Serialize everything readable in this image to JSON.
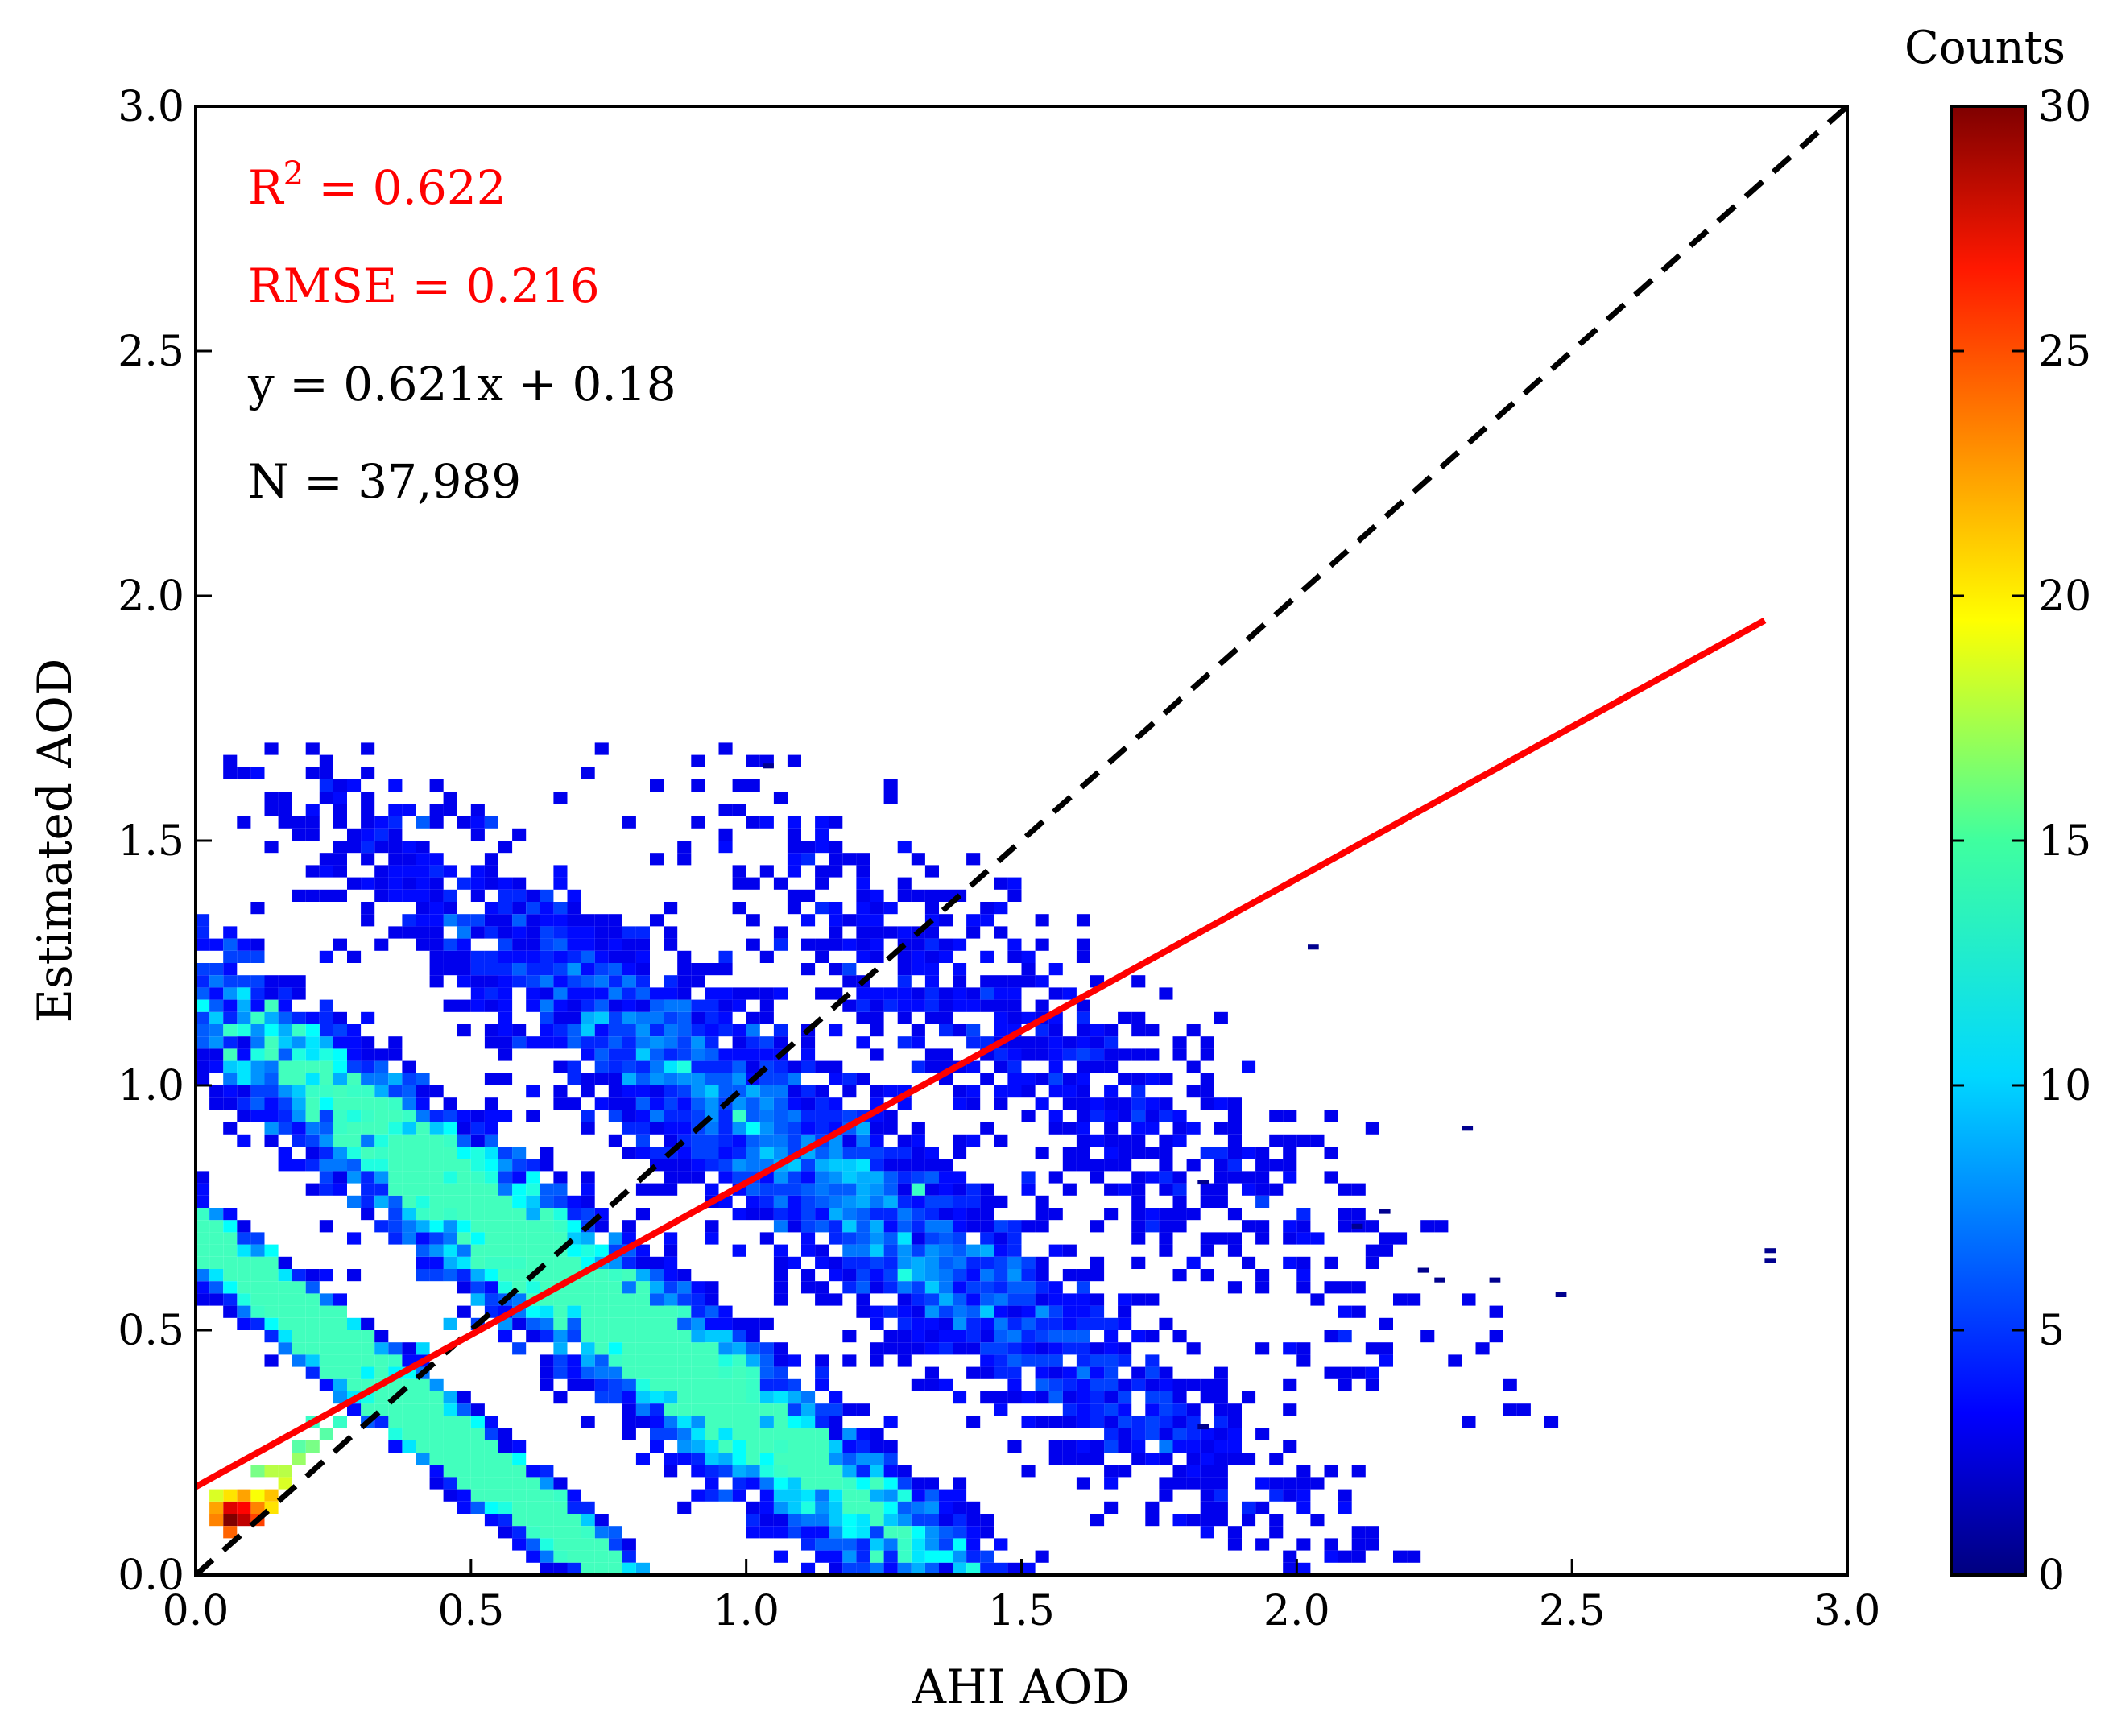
{
  "chart_data": {
    "type": "scatter",
    "subtype": "density-heatmap",
    "title": "",
    "xlabel": "AHI AOD",
    "ylabel": "Estimated AOD",
    "xlim": [
      0.0,
      3.0
    ],
    "ylim": [
      0.0,
      3.0
    ],
    "xticks": [
      "0.0",
      "0.5",
      "1.0",
      "1.5",
      "2.0",
      "2.5",
      "3.0"
    ],
    "yticks": [
      "0.0",
      "0.5",
      "1.0",
      "1.5",
      "2.0",
      "2.5",
      "3.0"
    ],
    "grid": false,
    "colorbar": {
      "title": "Counts",
      "range": [
        0,
        30
      ],
      "ticks": [
        "0",
        "5",
        "10",
        "15",
        "20",
        "25",
        "30"
      ],
      "colormap": "jet"
    },
    "stats": {
      "r2_prefix": "R",
      "r2_sup": "2",
      "r2_value": " = 0.622",
      "rmse": "RMSE = 0.216",
      "equation": "y = 0.621x + 0.18",
      "n": "N = 37,989"
    },
    "fit_line": {
      "slope": 0.621,
      "intercept": 0.18,
      "x_range": [
        0.0,
        2.85
      ],
      "color": "#ff0000"
    },
    "identity_line": {
      "x_range": [
        0.0,
        3.0
      ],
      "color": "#000000",
      "style": "dashed"
    },
    "stats_colors": {
      "r2": "#ff0000",
      "rmse": "#ff0000",
      "equation": "#000000",
      "n": "#000000"
    },
    "density_bins": {
      "bin_size": 0.025,
      "cells": [
        [
          0.05,
          0.1,
          30
        ],
        [
          0.075,
          0.1,
          28
        ],
        [
          0.05,
          0.125,
          27
        ],
        [
          0.075,
          0.125,
          26
        ],
        [
          0.1,
          0.1,
          24
        ],
        [
          0.025,
          0.1,
          22
        ],
        [
          0.05,
          0.075,
          23
        ],
        [
          0.1,
          0.125,
          22
        ],
        [
          0.125,
          0.15,
          20
        ],
        [
          0.025,
          0.125,
          21
        ],
        [
          0.075,
          0.15,
          21
        ],
        [
          0.05,
          0.15,
          19
        ],
        [
          0.1,
          0.15,
          18
        ],
        [
          0.125,
          0.125,
          19
        ],
        [
          0.15,
          0.175,
          17
        ],
        [
          0.025,
          0.15,
          17
        ],
        [
          0.125,
          0.2,
          16
        ],
        [
          0.15,
          0.2,
          16
        ],
        [
          0.175,
          0.225,
          15
        ],
        [
          0.2,
          0.25,
          14
        ],
        [
          0.225,
          0.275,
          13
        ],
        [
          0.25,
          0.3,
          12
        ],
        [
          0.175,
          0.25,
          13
        ],
        [
          0.1,
          0.2,
          14
        ],
        [
          0.2,
          0.3,
          12
        ],
        [
          0.3,
          0.35,
          11
        ],
        [
          0.35,
          0.4,
          10
        ],
        [
          0.4,
          0.45,
          9
        ],
        [
          0.3,
          0.4,
          10
        ],
        [
          0.45,
          0.5,
          8
        ],
        [
          0.5,
          0.55,
          8
        ],
        [
          0.55,
          0.5,
          7
        ]
      ]
    },
    "cloud_ellipses": [
      {
        "cx": 0.7,
        "cy": 0.58,
        "sx": 0.5,
        "sy": 0.28,
        "angle": -38,
        "n": 9000
      },
      {
        "cx": 0.35,
        "cy": 0.38,
        "sx": 0.3,
        "sy": 0.18,
        "angle": -40,
        "n": 7000
      },
      {
        "cx": 1.1,
        "cy": 0.85,
        "sx": 0.45,
        "sy": 0.28,
        "angle": -35,
        "n": 3000
      },
      {
        "cx": 1.55,
        "cy": 1.05,
        "sx": 0.35,
        "sy": 0.25,
        "angle": -30,
        "n": 700
      }
    ],
    "outliers": [
      [
        2.3,
        0.91
      ],
      [
        2.1,
        0.71
      ],
      [
        2.15,
        0.74
      ],
      [
        2.22,
        0.62
      ],
      [
        2.25,
        0.6
      ],
      [
        2.35,
        0.6
      ],
      [
        2.47,
        0.57
      ],
      [
        2.85,
        0.66
      ],
      [
        2.85,
        0.64
      ],
      [
        1.82,
        0.3
      ],
      [
        1.03,
        1.65
      ],
      [
        1.82,
        0.8
      ],
      [
        2.02,
        1.28
      ]
    ]
  }
}
